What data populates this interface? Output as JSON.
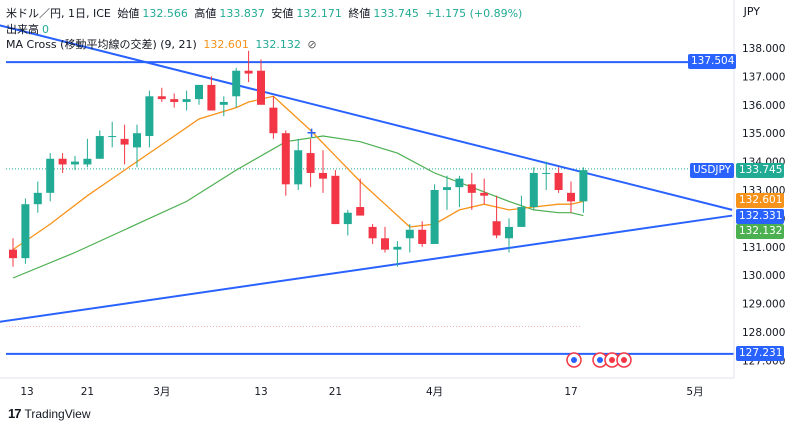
{
  "header": {
    "symbol_line": "米ドル／円, 1日, ICE",
    "open_label": "始値",
    "open": "132.566",
    "high_label": "高値",
    "high": "133.837",
    "low_label": "安値",
    "low": "132.171",
    "close_label": "終値",
    "close": "133.745",
    "change": "+1.175 (+0.89%)",
    "volume_label": "出来高",
    "volume": "0",
    "ma_label": "MA Cross (移動平均線の交差) (9, 21)",
    "ma_fast": "132.601",
    "ma_slow": "132.132",
    "ma_eye": "⊘",
    "currency": "JPY"
  },
  "brand": {
    "logo": "17",
    "name": "TradingView"
  },
  "tags": {
    "symbol": "USDJPY",
    "price": "133.745",
    "ma_fast": "132.601",
    "line_upper": "132.331",
    "ma_slow": "132.132",
    "h_upper": "137.504",
    "h_lower": "127.231"
  },
  "colors": {
    "up": "#22ab94",
    "down": "#f23645",
    "ma_fast": "#f7931a",
    "ma_slow": "#4caf50",
    "trend": "#2962ff",
    "accent": "#2962ff"
  },
  "chart_data": {
    "type": "candlestick",
    "y_ticks": [
      "138.000",
      "137.000",
      "136.000",
      "135.000",
      "134.000",
      "133.000",
      "132.000",
      "131.000",
      "130.000",
      "129.000",
      "128.000",
      "127.000"
    ],
    "x_ticks": [
      {
        "label": "13",
        "i": 0
      },
      {
        "label": "21",
        "i": 6
      },
      {
        "label": "3月",
        "i": 12
      },
      {
        "label": "13",
        "i": 20
      },
      {
        "label": "21",
        "i": 26
      },
      {
        "label": "4月",
        "i": 34
      },
      {
        "label": "17",
        "i": 45
      },
      {
        "label": "5月",
        "i": 55
      }
    ],
    "ylim": [
      126.6,
      138.5
    ],
    "candles": [
      [
        130.9,
        131.3,
        130.3,
        130.6
      ],
      [
        130.6,
        132.7,
        130.4,
        132.5
      ],
      [
        132.5,
        133.3,
        132.2,
        132.9
      ],
      [
        132.9,
        134.3,
        132.6,
        134.1
      ],
      [
        134.1,
        134.3,
        133.6,
        133.9
      ],
      [
        133.9,
        134.2,
        133.7,
        134.0
      ],
      [
        133.9,
        134.8,
        133.8,
        134.1
      ],
      [
        134.1,
        135.1,
        134.1,
        134.9
      ],
      [
        134.9,
        135.4,
        134.5,
        134.9
      ],
      [
        134.8,
        135.3,
        133.9,
        134.6
      ],
      [
        134.5,
        135.3,
        133.8,
        135.0
      ],
      [
        134.9,
        136.5,
        134.5,
        136.3
      ],
      [
        136.3,
        136.6,
        136.1,
        136.2
      ],
      [
        136.2,
        136.4,
        135.9,
        136.1
      ],
      [
        136.1,
        136.5,
        135.8,
        136.2
      ],
      [
        136.2,
        136.7,
        136.0,
        136.7
      ],
      [
        136.7,
        137.0,
        135.8,
        135.8
      ],
      [
        136.0,
        136.3,
        135.6,
        136.1
      ],
      [
        136.3,
        137.3,
        135.9,
        137.2
      ],
      [
        137.2,
        137.9,
        136.8,
        137.1
      ],
      [
        137.2,
        137.6,
        136.1,
        136.0
      ],
      [
        135.9,
        136.3,
        134.8,
        135.0
      ],
      [
        135.0,
        135.1,
        132.8,
        133.2
      ],
      [
        133.2,
        134.8,
        133.0,
        134.4
      ],
      [
        134.3,
        134.8,
        133.1,
        133.6
      ],
      [
        133.6,
        134.4,
        132.9,
        133.4
      ],
      [
        133.5,
        133.7,
        131.8,
        131.8
      ],
      [
        131.8,
        132.3,
        131.4,
        132.2
      ],
      [
        132.4,
        133.4,
        132.1,
        132.1
      ],
      [
        131.7,
        131.8,
        131.1,
        131.3
      ],
      [
        131.3,
        131.7,
        130.8,
        130.9
      ],
      [
        130.9,
        131.2,
        130.3,
        131.0
      ],
      [
        131.3,
        131.8,
        130.8,
        131.6
      ],
      [
        131.6,
        131.9,
        131.0,
        131.1
      ],
      [
        131.1,
        133.2,
        131.1,
        133.0
      ],
      [
        133.0,
        133.5,
        132.3,
        133.1
      ],
      [
        133.1,
        133.5,
        132.4,
        133.4
      ],
      [
        133.2,
        133.6,
        132.3,
        132.9
      ],
      [
        132.9,
        133.4,
        132.5,
        132.8
      ],
      [
        131.9,
        132.8,
        131.3,
        131.4
      ],
      [
        131.3,
        132.0,
        130.8,
        131.7
      ],
      [
        131.7,
        132.8,
        131.7,
        132.4
      ],
      [
        132.4,
        133.8,
        132.3,
        133.6
      ],
      [
        133.6,
        134.0,
        133.0,
        133.6
      ],
      [
        133.6,
        133.8,
        132.9,
        133.0
      ],
      [
        132.9,
        133.3,
        132.2,
        132.6
      ],
      [
        132.6,
        133.8,
        132.2,
        133.7
      ]
    ],
    "ma_fast": [
      [
        0,
        130.9
      ],
      [
        3,
        131.8
      ],
      [
        6,
        132.8
      ],
      [
        9,
        133.7
      ],
      [
        12,
        134.6
      ],
      [
        15,
        135.5
      ],
      [
        18,
        135.9
      ],
      [
        19,
        136.1
      ],
      [
        21,
        136.3
      ],
      [
        22,
        135.9
      ],
      [
        24,
        135.1
      ],
      [
        26,
        134.2
      ],
      [
        28,
        133.3
      ],
      [
        30,
        132.5
      ],
      [
        32,
        131.7
      ],
      [
        34,
        131.8
      ],
      [
        36,
        132.3
      ],
      [
        38,
        132.5
      ],
      [
        40,
        132.3
      ],
      [
        42,
        132.4
      ],
      [
        44,
        132.5
      ],
      [
        45,
        132.5
      ],
      [
        46,
        132.6
      ]
    ],
    "ma_slow": [
      [
        0,
        129.9
      ],
      [
        5,
        130.8
      ],
      [
        10,
        131.8
      ],
      [
        14,
        132.6
      ],
      [
        18,
        133.7
      ],
      [
        22,
        134.7
      ],
      [
        25,
        134.9
      ],
      [
        28,
        134.7
      ],
      [
        31,
        134.3
      ],
      [
        34,
        133.6
      ],
      [
        37,
        133.1
      ],
      [
        40,
        132.6
      ],
      [
        42,
        132.3
      ],
      [
        44,
        132.2
      ],
      [
        45,
        132.2
      ],
      [
        46,
        132.1
      ]
    ],
    "trend_lines": [
      {
        "name": "upper",
        "from": [
          -2,
          138.9
        ],
        "to": [
          58,
          132.3
        ]
      },
      {
        "name": "lower",
        "from": [
          -2,
          128.3
        ],
        "to": [
          58,
          132.1
        ]
      }
    ],
    "horizontal_lines": [
      137.504,
      127.231
    ],
    "last_price": 133.745
  }
}
